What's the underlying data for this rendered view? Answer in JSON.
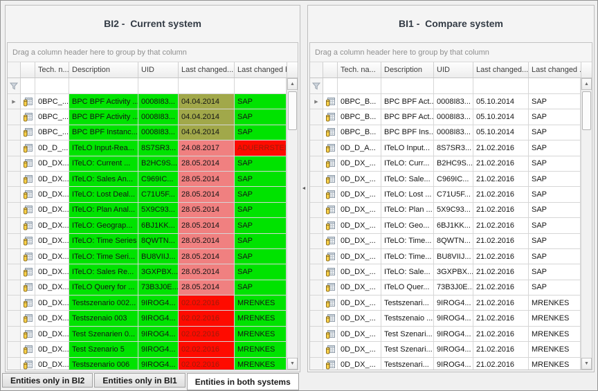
{
  "colors": {
    "green": "#00e300",
    "olive": "#a1a84a",
    "salmon": "#f08080",
    "red": "#fe0b00",
    "red_text": "#9c1b0b",
    "title_text": "#333b45"
  },
  "icons": {
    "row_type": {
      "name": "database-table-icon"
    },
    "filter": {
      "name": "filter-funnel-icon"
    },
    "row_indicator": {
      "name": "current-row-arrow-icon",
      "glyph": "▶"
    },
    "scroll_up": {
      "name": "scroll-up-arrow",
      "glyph": "▲"
    },
    "scroll_down": {
      "name": "scroll-down-arrow",
      "glyph": "▼"
    },
    "splitter_arrow": {
      "name": "collapse-left-arrow",
      "glyph": "◄"
    }
  },
  "tabs": [
    {
      "label": "Entities only in BI2",
      "active": false
    },
    {
      "label": "Entities only in BI1",
      "active": false
    },
    {
      "label": "Entities in both systems",
      "active": true
    }
  ],
  "panels": [
    {
      "id": "BI2",
      "title": "BI2 -  Current system",
      "group_hint": "Drag a column header here to group by that column",
      "columns": [
        "Tech. n...",
        "Description",
        "UID",
        "Last changed...",
        "Last changed by"
      ],
      "rows": [
        {
          "tech": "0BPC_...",
          "desc": "BPC BPF Activity ...",
          "uid": "0008I83...",
          "date": "04.04.2014",
          "by": "SAP",
          "bg": {
            "desc": "green",
            "uid": "green",
            "date": "olive",
            "by": "green"
          }
        },
        {
          "tech": "0BPC_...",
          "desc": "BPC BPF Activity ...",
          "uid": "0008I83...",
          "date": "04.04.2014",
          "by": "SAP",
          "bg": {
            "desc": "green",
            "uid": "green",
            "date": "olive",
            "by": "green"
          }
        },
        {
          "tech": "0BPC_...",
          "desc": "BPC BPF Instanc...",
          "uid": "0008I83...",
          "date": "04.04.2014",
          "by": "SAP",
          "bg": {
            "desc": "green",
            "uid": "green",
            "date": "olive",
            "by": "green"
          }
        },
        {
          "tech": "0D_D_...",
          "desc": "ITeLO Input-Rea...",
          "uid": "8S7SR3...",
          "date": "24.08.2017",
          "by": "ADUERRSTEIN",
          "bg": {
            "desc": "green",
            "uid": "green",
            "date": "salmon",
            "by": "red"
          },
          "fg": {
            "by": "red_text"
          }
        },
        {
          "tech": "0D_DX...",
          "desc": "ITeLO: Current ...",
          "uid": "B2HC9S...",
          "date": "28.05.2014",
          "by": "SAP",
          "bg": {
            "desc": "green",
            "uid": "green",
            "date": "salmon",
            "by": "green"
          }
        },
        {
          "tech": "0D_DX...",
          "desc": "ITeLO: Sales An...",
          "uid": "C969IC...",
          "date": "28.05.2014",
          "by": "SAP",
          "bg": {
            "desc": "green",
            "uid": "green",
            "date": "salmon",
            "by": "green"
          }
        },
        {
          "tech": "0D_DX...",
          "desc": "ITeLO: Lost Deal...",
          "uid": "C71U5F...",
          "date": "28.05.2014",
          "by": "SAP",
          "bg": {
            "desc": "green",
            "uid": "green",
            "date": "salmon",
            "by": "green"
          }
        },
        {
          "tech": "0D_DX...",
          "desc": "ITeLO: Plan Anal...",
          "uid": "5X9C93...",
          "date": "28.05.2014",
          "by": "SAP",
          "bg": {
            "desc": "green",
            "uid": "green",
            "date": "salmon",
            "by": "green"
          }
        },
        {
          "tech": "0D_DX...",
          "desc": "ITeLO: Geograp...",
          "uid": "6BJ1KK...",
          "date": "28.05.2014",
          "by": "SAP",
          "bg": {
            "desc": "green",
            "uid": "green",
            "date": "salmon",
            "by": "green"
          }
        },
        {
          "tech": "0D_DX...",
          "desc": "ITeLO: Time Series",
          "uid": "8QWTN...",
          "date": "28.05.2014",
          "by": "SAP",
          "bg": {
            "desc": "green",
            "uid": "green",
            "date": "salmon",
            "by": "green"
          }
        },
        {
          "tech": "0D_DX...",
          "desc": "ITeLO: Time Seri...",
          "uid": "BU8VIIJ...",
          "date": "28.05.2014",
          "by": "SAP",
          "bg": {
            "desc": "green",
            "uid": "green",
            "date": "salmon",
            "by": "green"
          }
        },
        {
          "tech": "0D_DX...",
          "desc": "ITeLO: Sales Re...",
          "uid": "3GXPBX...",
          "date": "28.05.2014",
          "by": "SAP",
          "bg": {
            "desc": "green",
            "uid": "green",
            "date": "salmon",
            "by": "green"
          }
        },
        {
          "tech": "0D_DX...",
          "desc": "ITeLO Query for ...",
          "uid": "73B3J0E...",
          "date": "28.05.2014",
          "by": "SAP",
          "bg": {
            "desc": "green",
            "uid": "green",
            "date": "salmon",
            "by": "green"
          }
        },
        {
          "tech": "0D_DX...",
          "desc": "Testszenario 002...",
          "uid": "9IROG4...",
          "date": "02.02.2016",
          "by": "MRENKES",
          "bg": {
            "desc": "green",
            "uid": "green",
            "date": "red",
            "by": "green"
          },
          "fg": {
            "date": "red_text"
          }
        },
        {
          "tech": "0D_DX...",
          "desc": "Testszenaio 003",
          "uid": "9IROG4...",
          "date": "02.02.2016",
          "by": "MRENKES",
          "bg": {
            "desc": "green",
            "uid": "green",
            "date": "red",
            "by": "green"
          },
          "fg": {
            "date": "red_text"
          }
        },
        {
          "tech": "0D_DX...",
          "desc": "Test Szenarien 0...",
          "uid": "9IROG4...",
          "date": "02.02.2016",
          "by": "MRENKES",
          "bg": {
            "desc": "green",
            "uid": "green",
            "date": "red",
            "by": "green"
          },
          "fg": {
            "date": "red_text"
          }
        },
        {
          "tech": "0D_DX...",
          "desc": "Test Szenario 5",
          "uid": "9IROG4...",
          "date": "02.02.2016",
          "by": "MRENKES",
          "bg": {
            "desc": "green",
            "uid": "green",
            "date": "red",
            "by": "green"
          },
          "fg": {
            "date": "red_text"
          }
        },
        {
          "tech": "0D_DX...",
          "desc": "Testszenario 006",
          "uid": "9IROG4...",
          "date": "02.02.2016",
          "by": "MRENKES",
          "bg": {
            "desc": "green",
            "uid": "green",
            "date": "red",
            "by": "green"
          },
          "fg": {
            "date": "red_text"
          }
        }
      ]
    },
    {
      "id": "BI1",
      "title": "BI1 -  Compare system",
      "group_hint": "Drag a column header here to group by that column",
      "columns": [
        "Tech. na...",
        "Description",
        "UID",
        "Last changed...",
        "Last changed ..."
      ],
      "rows": [
        {
          "tech": "0BPC_B...",
          "desc": "BPC BPF Act...",
          "uid": "0008I83...",
          "date": "05.10.2014",
          "by": "SAP"
        },
        {
          "tech": "0BPC_B...",
          "desc": "BPC BPF Act...",
          "uid": "0008I83...",
          "date": "05.10.2014",
          "by": "SAP"
        },
        {
          "tech": "0BPC_B...",
          "desc": "BPC BPF Ins...",
          "uid": "0008I83...",
          "date": "05.10.2014",
          "by": "SAP"
        },
        {
          "tech": "0D_D_A...",
          "desc": "ITeLO Input...",
          "uid": "8S7SR3...",
          "date": "21.02.2016",
          "by": "SAP"
        },
        {
          "tech": "0D_DX_...",
          "desc": "ITeLO: Curr...",
          "uid": "B2HC9S...",
          "date": "21.02.2016",
          "by": "SAP"
        },
        {
          "tech": "0D_DX_...",
          "desc": "ITeLO: Sale...",
          "uid": "C969IC...",
          "date": "21.02.2016",
          "by": "SAP"
        },
        {
          "tech": "0D_DX_...",
          "desc": "ITeLO: Lost ...",
          "uid": "C71U5F...",
          "date": "21.02.2016",
          "by": "SAP"
        },
        {
          "tech": "0D_DX_...",
          "desc": "ITeLO: Plan ...",
          "uid": "5X9C93...",
          "date": "21.02.2016",
          "by": "SAP"
        },
        {
          "tech": "0D_DX_...",
          "desc": "ITeLO: Geo...",
          "uid": "6BJ1KK...",
          "date": "21.02.2016",
          "by": "SAP"
        },
        {
          "tech": "0D_DX_...",
          "desc": "ITeLO: Time...",
          "uid": "8QWTN...",
          "date": "21.02.2016",
          "by": "SAP"
        },
        {
          "tech": "0D_DX_...",
          "desc": "ITeLO: Time...",
          "uid": "BU8VIIJ...",
          "date": "21.02.2016",
          "by": "SAP"
        },
        {
          "tech": "0D_DX_...",
          "desc": "ITeLO: Sale...",
          "uid": "3GXPBX...",
          "date": "21.02.2016",
          "by": "SAP"
        },
        {
          "tech": "0D_DX_...",
          "desc": "ITeLO Quer...",
          "uid": "73B3J0E...",
          "date": "21.02.2016",
          "by": "SAP"
        },
        {
          "tech": "0D_DX_...",
          "desc": "Testszenari...",
          "uid": "9IROG4...",
          "date": "21.02.2016",
          "by": "MRENKES"
        },
        {
          "tech": "0D_DX_...",
          "desc": "Testszenaio ...",
          "uid": "9IROG4...",
          "date": "21.02.2016",
          "by": "MRENKES"
        },
        {
          "tech": "0D_DX_...",
          "desc": "Test Szenari...",
          "uid": "9IROG4...",
          "date": "21.02.2016",
          "by": "MRENKES"
        },
        {
          "tech": "0D_DX_...",
          "desc": "Test Szenari...",
          "uid": "9IROG4...",
          "date": "21.02.2016",
          "by": "MRENKES"
        },
        {
          "tech": "0D_DX_...",
          "desc": "Testszenari...",
          "uid": "9IROG4...",
          "date": "21.02.2016",
          "by": "MRENKES"
        }
      ]
    }
  ]
}
